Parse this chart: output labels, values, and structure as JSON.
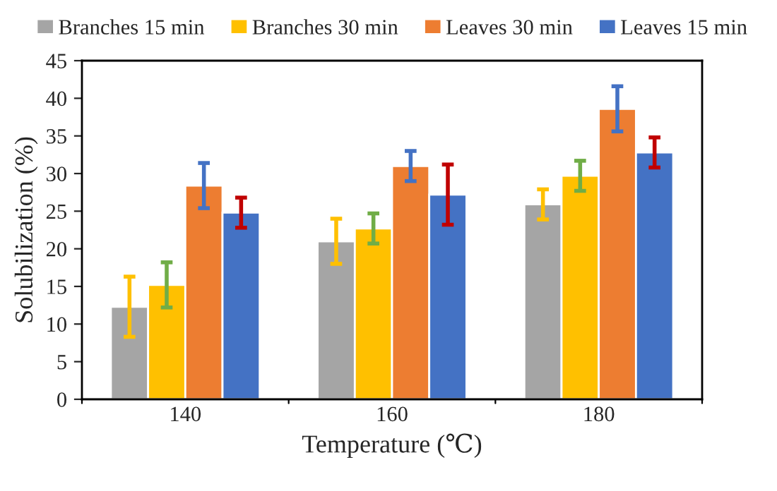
{
  "chart_data": {
    "type": "bar",
    "xlabel": "Temperature (℃)",
    "ylabel": "Solubilization (%)",
    "categories": [
      "140",
      "160",
      "180"
    ],
    "series": [
      {
        "name": "Branches 15 min",
        "color": "#a5a5a5",
        "values": [
          12.3,
          21.0,
          25.9
        ],
        "errors": [
          4,
          3,
          2
        ]
      },
      {
        "name": "Branches 30 min",
        "color": "#ffc000",
        "values": [
          15.2,
          22.7,
          29.7
        ],
        "errors": [
          3,
          2,
          2
        ]
      },
      {
        "name": "Leaves 30 min",
        "color": "#ed7d31",
        "values": [
          28.4,
          31.0,
          38.6
        ],
        "errors": [
          3,
          2,
          3
        ]
      },
      {
        "name": "Leaves 15 min",
        "color": "#4472c4",
        "values": [
          24.8,
          27.2,
          32.8
        ],
        "errors": [
          2,
          4,
          2
        ]
      }
    ],
    "ylim": [
      0,
      45
    ],
    "yticks": [
      0,
      5,
      10,
      15,
      20,
      25,
      30,
      35,
      40,
      45
    ],
    "grid": false,
    "legend": "top"
  }
}
